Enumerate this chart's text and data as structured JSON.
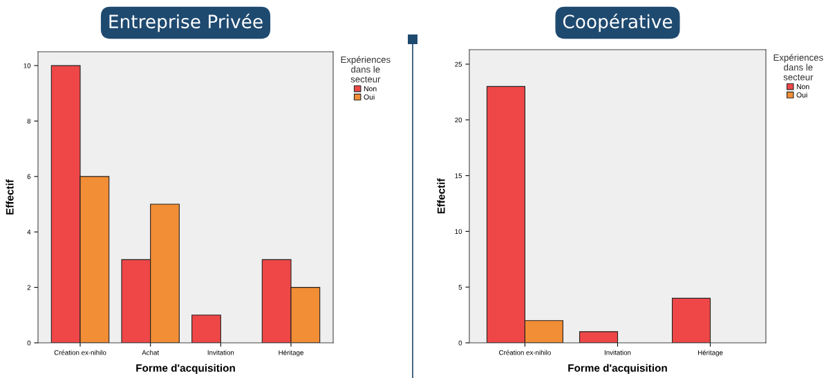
{
  "chart_data": [
    {
      "type": "bar",
      "title": "Entreprise Privée",
      "xlabel": "Forme d'acquisition",
      "ylabel": "Effectif",
      "legend_title": "Expériences\ndans le\nsecteur",
      "legend": "top right",
      "categories": [
        "Création ex-nihilo",
        "Achat",
        "Invitation",
        "Héritage"
      ],
      "series": [
        {
          "name": "Non",
          "color": "#ef4747",
          "values": [
            10,
            3,
            1,
            3
          ]
        },
        {
          "name": "Oui",
          "color": "#f28e35",
          "values": [
            6,
            5,
            null,
            2
          ]
        }
      ],
      "ylim": [
        0,
        10.5
      ],
      "yticks": [
        0,
        2,
        4,
        6,
        8,
        10
      ]
    },
    {
      "type": "bar",
      "title": "Coopérative",
      "xlabel": "Forme d'acquisition",
      "ylabel": "Effectif",
      "legend_title": "Expériences\ndans le\nsecteur",
      "legend": "top right",
      "categories": [
        "Création ex-nihilo",
        "Invitation",
        "Héritage"
      ],
      "series": [
        {
          "name": "Non",
          "color": "#ef4747",
          "values": [
            23,
            1,
            4
          ]
        },
        {
          "name": "Oui",
          "color": "#f28e35",
          "values": [
            2,
            null,
            null
          ]
        }
      ],
      "ylim": [
        0,
        26.3
      ],
      "yticks": [
        0,
        5,
        10,
        15,
        20,
        25
      ]
    }
  ]
}
